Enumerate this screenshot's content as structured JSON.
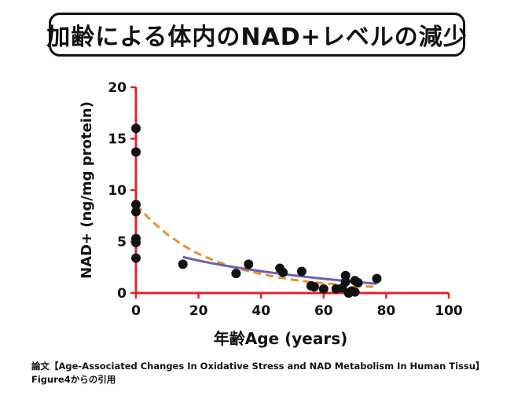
{
  "header": {
    "title": "加齢による体内のNAD+レベルの減少"
  },
  "caption": {
    "line1": "論文【Age-Associated Changes In Oxidative Stress and NAD Metabolism In Human Tissu】",
    "line2": "Figure4からの引用"
  },
  "colors": {
    "axis": "#e0242b",
    "points": "#111111",
    "fit_orange": "#e8912a",
    "fit_purple": "#6a5fb8"
  },
  "chart_data": {
    "type": "scatter",
    "xlabel": "年齢Age (years)",
    "ylabel": "NAD+ (ng/mg protein)",
    "xlim": [
      0,
      100
    ],
    "ylim": [
      0,
      20
    ],
    "xticks": [
      0,
      20,
      40,
      60,
      80,
      100
    ],
    "yticks": [
      0,
      5,
      10,
      15,
      20
    ],
    "grid": false,
    "points": [
      {
        "x": 0,
        "y": 16.0
      },
      {
        "x": 0,
        "y": 13.7
      },
      {
        "x": 0,
        "y": 8.6
      },
      {
        "x": 0,
        "y": 7.9
      },
      {
        "x": 0,
        "y": 5.3
      },
      {
        "x": 0,
        "y": 4.9
      },
      {
        "x": 0,
        "y": 3.4
      },
      {
        "x": 15,
        "y": 2.8
      },
      {
        "x": 32,
        "y": 1.9
      },
      {
        "x": 36,
        "y": 2.8
      },
      {
        "x": 46,
        "y": 2.4
      },
      {
        "x": 47,
        "y": 2.0
      },
      {
        "x": 53,
        "y": 2.1
      },
      {
        "x": 56,
        "y": 0.7
      },
      {
        "x": 57,
        "y": 0.6
      },
      {
        "x": 60,
        "y": 0.4
      },
      {
        "x": 64,
        "y": 0.4
      },
      {
        "x": 66,
        "y": 0.5
      },
      {
        "x": 67,
        "y": 1.7
      },
      {
        "x": 67,
        "y": 1.1
      },
      {
        "x": 68,
        "y": 0.0
      },
      {
        "x": 69,
        "y": 0.2
      },
      {
        "x": 70,
        "y": 1.2
      },
      {
        "x": 70,
        "y": 0.1
      },
      {
        "x": 71,
        "y": 1.0
      },
      {
        "x": 77,
        "y": 1.4
      }
    ],
    "curves": [
      {
        "style": "dashed",
        "color": "orange",
        "x": [
          0,
          5,
          10,
          15,
          20,
          25,
          30,
          35,
          40,
          45,
          50,
          55,
          60,
          65,
          70,
          75,
          77
        ],
        "y": [
          8.6,
          7.0,
          5.7,
          4.65,
          3.8,
          3.15,
          2.6,
          2.2,
          1.85,
          1.55,
          1.3,
          1.1,
          0.95,
          0.82,
          0.7,
          0.62,
          0.6
        ]
      },
      {
        "style": "solid",
        "color": "purple",
        "x": [
          15,
          20,
          25,
          30,
          35,
          40,
          45,
          50,
          55,
          60,
          65,
          70,
          77
        ],
        "y": [
          3.5,
          3.15,
          2.85,
          2.58,
          2.35,
          2.12,
          1.92,
          1.73,
          1.55,
          1.38,
          1.23,
          1.08,
          0.9
        ]
      }
    ]
  }
}
